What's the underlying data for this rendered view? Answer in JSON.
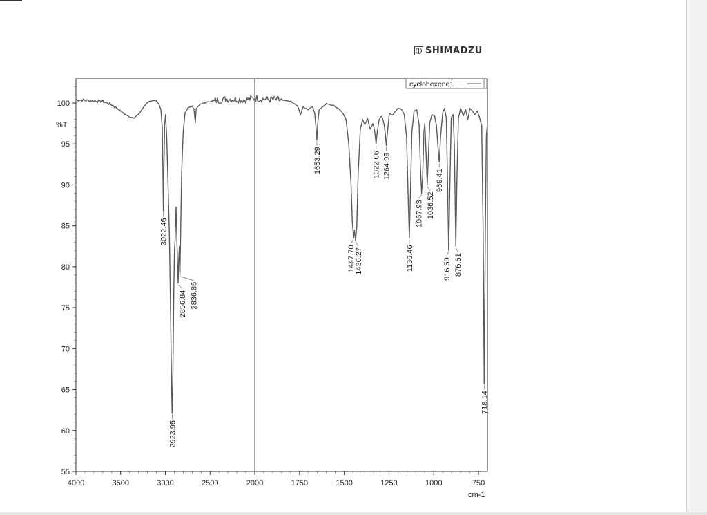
{
  "brand": {
    "name": "SHIMADZU",
    "logo": "shimadzu-logo-icon"
  },
  "colors": {
    "trace": "#5a5a5a",
    "axis": "#333333",
    "gridline": "#444444",
    "background": "#ffffff"
  },
  "chart_data": {
    "type": "line",
    "title": "",
    "ylabel": "%T",
    "xlabel": "cm-1",
    "xlim": [
      4000,
      700
    ],
    "ylim": [
      55,
      103
    ],
    "x_reversed": true,
    "grid": false,
    "legend_position": "top-right",
    "xticks": [
      4000,
      3500,
      3000,
      2500,
      2000,
      1750,
      1500,
      1250,
      1000,
      750
    ],
    "yticks": [
      55,
      60,
      65,
      70,
      75,
      80,
      85,
      90,
      95,
      100
    ],
    "series": [
      {
        "name": "cyclohexene1",
        "points": [
          [
            4000,
            100.4
          ],
          [
            3850,
            100.3
          ],
          [
            3700,
            100.2
          ],
          [
            3600,
            99.8
          ],
          [
            3520,
            99.2
          ],
          [
            3450,
            98.6
          ],
          [
            3400,
            98.3
          ],
          [
            3350,
            98.2
          ],
          [
            3300,
            98.6
          ],
          [
            3250,
            99.4
          ],
          [
            3200,
            100.1
          ],
          [
            3150,
            100.3
          ],
          [
            3100,
            100.2
          ],
          [
            3070,
            99.8
          ],
          [
            3050,
            99.2
          ],
          [
            3035,
            97.0
          ],
          [
            3028,
            92.0
          ],
          [
            3022.46,
            86.8
          ],
          [
            3016,
            92.0
          ],
          [
            3008,
            97.5
          ],
          [
            2998,
            98.6
          ],
          [
            2985,
            96.0
          ],
          [
            2970,
            90.0
          ],
          [
            2955,
            84.0
          ],
          [
            2942,
            75.0
          ],
          [
            2935,
            69.0
          ],
          [
            2929,
            64.5
          ],
          [
            2923.95,
            62.1
          ],
          [
            2919,
            64.5
          ],
          [
            2913,
            70.0
          ],
          [
            2905,
            77.5
          ],
          [
            2898,
            82.0
          ],
          [
            2890,
            83.5
          ],
          [
            2880,
            87.3
          ],
          [
            2870,
            83.0
          ],
          [
            2862,
            79.5
          ],
          [
            2856.84,
            78.0
          ],
          [
            2850,
            81.0
          ],
          [
            2843,
            82.5
          ],
          [
            2836.86,
            79.0
          ],
          [
            2830,
            83.5
          ],
          [
            2818,
            91.5
          ],
          [
            2800,
            96.5
          ],
          [
            2780,
            98.8
          ],
          [
            2750,
            99.4
          ],
          [
            2700,
            99.6
          ],
          [
            2680,
            99.3
          ],
          [
            2665,
            97.6
          ],
          [
            2655,
            99.3
          ],
          [
            2620,
            99.8
          ],
          [
            2500,
            100.2
          ],
          [
            2300,
            100.5
          ],
          [
            2100,
            100.4
          ],
          [
            2000,
            100.6
          ],
          [
            1950,
            100.5
          ],
          [
            1880,
            100.4
          ],
          [
            1800,
            100.2
          ],
          [
            1760,
            99.6
          ],
          [
            1745,
            98.6
          ],
          [
            1730,
            99.5
          ],
          [
            1700,
            99.2
          ],
          [
            1680,
            99.6
          ],
          [
            1665,
            98.8
          ],
          [
            1658,
            97.0
          ],
          [
            1653.29,
            95.5
          ],
          [
            1648,
            97.5
          ],
          [
            1640,
            99.2
          ],
          [
            1600,
            99.9
          ],
          [
            1560,
            99.7
          ],
          [
            1530,
            99.3
          ],
          [
            1505,
            98.7
          ],
          [
            1490,
            98.0
          ],
          [
            1475,
            95.0
          ],
          [
            1462,
            90.0
          ],
          [
            1455,
            85.5
          ],
          [
            1447.7,
            83.5
          ],
          [
            1443,
            84.5
          ],
          [
            1436.27,
            83.2
          ],
          [
            1430,
            85.0
          ],
          [
            1422,
            91.5
          ],
          [
            1410,
            96.8
          ],
          [
            1398,
            98.0
          ],
          [
            1385,
            97.4
          ],
          [
            1370,
            98.1
          ],
          [
            1355,
            96.8
          ],
          [
            1340,
            97.5
          ],
          [
            1330,
            96.6
          ],
          [
            1322.06,
            95.0
          ],
          [
            1315,
            96.6
          ],
          [
            1305,
            98.0
          ],
          [
            1290,
            98.4
          ],
          [
            1278,
            97.4
          ],
          [
            1270,
            96.2
          ],
          [
            1264.95,
            94.8
          ],
          [
            1258,
            96.5
          ],
          [
            1248,
            98.8
          ],
          [
            1230,
            98.5
          ],
          [
            1200,
            99.4
          ],
          [
            1180,
            99.2
          ],
          [
            1165,
            98.6
          ],
          [
            1152,
            96.0
          ],
          [
            1143,
            88.5
          ],
          [
            1136.46,
            83.5
          ],
          [
            1130,
            89.0
          ],
          [
            1122,
            96.5
          ],
          [
            1110,
            99.0
          ],
          [
            1095,
            99.2
          ],
          [
            1082,
            97.4
          ],
          [
            1075,
            92.5
          ],
          [
            1067.93,
            89.0
          ],
          [
            1062,
            91.0
          ],
          [
            1055,
            96.5
          ],
          [
            1050,
            97.5
          ],
          [
            1042,
            93.5
          ],
          [
            1036.52,
            90.0
          ],
          [
            1030,
            93.5
          ],
          [
            1022,
            97.6
          ],
          [
            1010,
            98.6
          ],
          [
            995,
            98.4
          ],
          [
            985,
            97.3
          ],
          [
            976,
            94.5
          ],
          [
            969.41,
            92.8
          ],
          [
            962,
            95.8
          ],
          [
            950,
            98.8
          ],
          [
            940,
            99.3
          ],
          [
            930,
            98.2
          ],
          [
            924,
            92.0
          ],
          [
            916.59,
            82.0
          ],
          [
            910,
            90.0
          ],
          [
            902,
            98.2
          ],
          [
            892,
            98.6
          ],
          [
            885,
            95.0
          ],
          [
            876.61,
            82.5
          ],
          [
            870,
            91.0
          ],
          [
            862,
            98.2
          ],
          [
            850,
            99.4
          ],
          [
            835,
            98.4
          ],
          [
            822,
            99.2
          ],
          [
            810,
            98.0
          ],
          [
            798,
            99.3
          ],
          [
            785,
            99.1
          ],
          [
            770,
            98.6
          ],
          [
            758,
            99.0
          ],
          [
            745,
            98.3
          ],
          [
            732,
            97.2
          ],
          [
            724,
            84.0
          ],
          [
            718.14,
            65.7
          ],
          [
            712,
            84.0
          ],
          [
            706,
            96.0
          ],
          [
            700,
            97.5
          ]
        ]
      }
    ],
    "annotations": [
      {
        "label": "3022.46",
        "x": 3022.46,
        "y": 86.8
      },
      {
        "label": "2923.95",
        "x": 2923.95,
        "y": 62.1
      },
      {
        "label": "2856.84",
        "x": 2856.84,
        "y": 78.0
      },
      {
        "label": "2836.86",
        "x": 2836.86,
        "y": 79.0
      },
      {
        "label": "1653.29",
        "x": 1653.29,
        "y": 95.5
      },
      {
        "label": "1447.70",
        "x": 1447.7,
        "y": 83.5
      },
      {
        "label": "1436.27",
        "x": 1436.27,
        "y": 83.2
      },
      {
        "label": "1322.06",
        "x": 1322.06,
        "y": 95.0
      },
      {
        "label": "1264.95",
        "x": 1264.95,
        "y": 94.8
      },
      {
        "label": "1136.46",
        "x": 1136.46,
        "y": 83.5
      },
      {
        "label": "1067.93",
        "x": 1067.93,
        "y": 89.0
      },
      {
        "label": "1036.52",
        "x": 1036.52,
        "y": 90.0
      },
      {
        "label": "969.41",
        "x": 969.41,
        "y": 92.8
      },
      {
        "label": "916.59",
        "x": 916.59,
        "y": 82.0
      },
      {
        "label": "876.61",
        "x": 876.61,
        "y": 82.5
      },
      {
        "label": "718.14",
        "x": 718.14,
        "y": 65.7
      }
    ]
  }
}
